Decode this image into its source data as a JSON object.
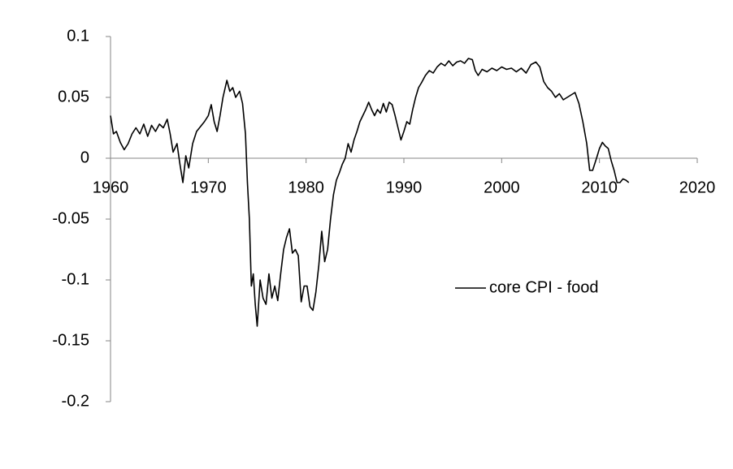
{
  "chart_data": {
    "type": "line",
    "x": [
      1960,
      1960.3,
      1960.6,
      1961,
      1961.4,
      1961.8,
      1962.2,
      1962.6,
      1963,
      1963.4,
      1963.8,
      1964.2,
      1964.6,
      1965,
      1965.4,
      1965.8,
      1966.1,
      1966.4,
      1966.8,
      1967.1,
      1967.4,
      1967.7,
      1968,
      1968.4,
      1968.8,
      1969.2,
      1969.6,
      1970,
      1970.3,
      1970.6,
      1970.9,
      1971.2,
      1971.5,
      1971.9,
      1972.2,
      1972.5,
      1972.8,
      1973.2,
      1973.5,
      1973.8,
      1974,
      1974.2,
      1974.4,
      1974.6,
      1974.8,
      1975,
      1975.3,
      1975.6,
      1975.9,
      1976.2,
      1976.5,
      1976.8,
      1977.1,
      1977.4,
      1977.7,
      1978,
      1978.3,
      1978.6,
      1978.9,
      1979.2,
      1979.5,
      1979.8,
      1980.1,
      1980.4,
      1980.7,
      1981,
      1981.3,
      1981.6,
      1981.9,
      1982.2,
      1982.5,
      1982.8,
      1983.1,
      1983.4,
      1983.7,
      1984,
      1984.3,
      1984.6,
      1984.9,
      1985.2,
      1985.5,
      1985.8,
      1986.1,
      1986.4,
      1986.7,
      1987,
      1987.3,
      1987.6,
      1987.9,
      1988.2,
      1988.5,
      1988.8,
      1989.1,
      1989.4,
      1989.7,
      1990,
      1990.3,
      1990.6,
      1990.9,
      1991.2,
      1991.5,
      1991.8,
      1992.2,
      1992.6,
      1993,
      1993.4,
      1993.8,
      1994.2,
      1994.6,
      1995,
      1995.4,
      1995.8,
      1996.2,
      1996.6,
      1997,
      1997.3,
      1997.6,
      1998,
      1998.5,
      1999,
      1999.5,
      2000,
      2000.5,
      2001,
      2001.5,
      2002,
      2002.5,
      2003,
      2003.5,
      2003.9,
      2004.3,
      2004.7,
      2005.1,
      2005.5,
      2005.9,
      2006.3,
      2006.7,
      2007.1,
      2007.5,
      2007.9,
      2008.3,
      2008.7,
      2009,
      2009.3,
      2009.7,
      2010,
      2010.3,
      2010.6,
      2010.9,
      2011.2,
      2011.5,
      2011.8,
      2012.1,
      2012.4,
      2012.7,
      2013
    ],
    "series": [
      {
        "name": "core CPI - food",
        "color": "#000000",
        "values": [
          0.035,
          0.02,
          0.022,
          0.013,
          0.007,
          0.012,
          0.02,
          0.025,
          0.02,
          0.028,
          0.018,
          0.027,
          0.022,
          0.028,
          0.025,
          0.032,
          0.02,
          0.005,
          0.012,
          -0.005,
          -0.02,
          0.002,
          -0.008,
          0.012,
          0.022,
          0.026,
          0.03,
          0.035,
          0.044,
          0.03,
          0.022,
          0.035,
          0.05,
          0.064,
          0.055,
          0.058,
          0.05,
          0.055,
          0.045,
          0.02,
          -0.02,
          -0.05,
          -0.105,
          -0.095,
          -0.12,
          -0.138,
          -0.1,
          -0.115,
          -0.12,
          -0.095,
          -0.115,
          -0.105,
          -0.117,
          -0.095,
          -0.075,
          -0.065,
          -0.058,
          -0.078,
          -0.075,
          -0.08,
          -0.118,
          -0.105,
          -0.105,
          -0.122,
          -0.125,
          -0.11,
          -0.088,
          -0.06,
          -0.085,
          -0.075,
          -0.05,
          -0.03,
          -0.018,
          -0.012,
          -0.005,
          0,
          0.012,
          0.005,
          0.015,
          0.022,
          0.03,
          0.035,
          0.04,
          0.046,
          0.04,
          0.035,
          0.04,
          0.037,
          0.045,
          0.038,
          0.046,
          0.044,
          0.035,
          0.025,
          0.015,
          0.022,
          0.03,
          0.028,
          0.04,
          0.05,
          0.058,
          0.062,
          0.068,
          0.072,
          0.07,
          0.075,
          0.078,
          0.076,
          0.08,
          0.076,
          0.079,
          0.08,
          0.078,
          0.082,
          0.081,
          0.072,
          0.068,
          0.073,
          0.071,
          0.074,
          0.072,
          0.075,
          0.073,
          0.074,
          0.071,
          0.074,
          0.07,
          0.077,
          0.079,
          0.075,
          0.063,
          0.058,
          0.055,
          0.05,
          0.053,
          0.048,
          0.05,
          0.052,
          0.054,
          0.045,
          0.03,
          0.012,
          -0.01,
          -0.01,
          0,
          0.008,
          0.013,
          0.01,
          0.008,
          -0.002,
          -0.01,
          -0.02,
          -0.02,
          -0.017,
          -0.018,
          -0.02
        ]
      }
    ],
    "xlim": [
      1960,
      2020
    ],
    "xticks": [
      1960,
      1970,
      1980,
      1990,
      2000,
      2010,
      2020
    ],
    "ylim": [
      -0.2,
      0.1
    ],
    "yticks": [
      0.1,
      0.05,
      0,
      -0.05,
      -0.1,
      -0.15,
      -0.2
    ],
    "grid": false,
    "legend_position": "center-right"
  }
}
